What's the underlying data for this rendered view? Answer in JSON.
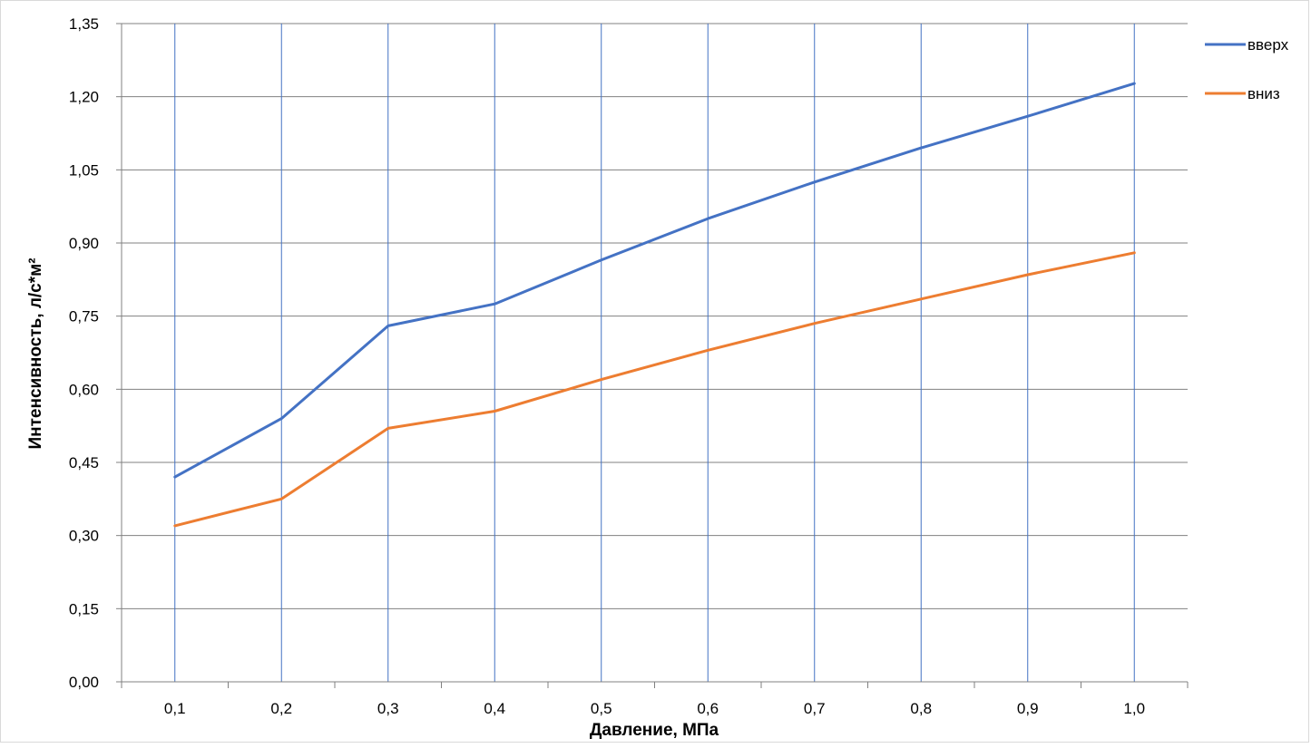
{
  "chart_data": {
    "type": "line",
    "x": [
      "0,1",
      "0,2",
      "0,3",
      "0,4",
      "0,5",
      "0,6",
      "0,7",
      "0,8",
      "0,9",
      "1,0"
    ],
    "x_values": [
      0.1,
      0.2,
      0.3,
      0.4,
      0.5,
      0.6,
      0.7,
      0.8,
      0.9,
      1.0
    ],
    "series": [
      {
        "name": "вверх",
        "color": "#4472C4",
        "values": [
          0.42,
          0.54,
          0.73,
          0.775,
          0.865,
          0.95,
          1.025,
          1.095,
          1.16,
          1.227
        ]
      },
      {
        "name": "вниз",
        "color": "#ED7D31",
        "values": [
          0.32,
          0.375,
          0.52,
          0.555,
          0.62,
          0.68,
          0.735,
          0.785,
          0.835,
          0.88
        ]
      }
    ],
    "xlabel": "Давление, МПа",
    "ylabel": "Интенсивность, л/с*м²",
    "ylim": [
      0,
      1.35
    ],
    "y_ticks": [
      "0,00",
      "0,15",
      "0,30",
      "0,45",
      "0,60",
      "0,75",
      "0,90",
      "1,05",
      "1,20",
      "1,35"
    ],
    "y_tick_values": [
      0,
      0.15,
      0.3,
      0.45,
      0.6,
      0.75,
      0.9,
      1.05,
      1.2,
      1.35
    ],
    "grid": {
      "horizontal": true,
      "vertical": true,
      "horizontal_color": "#808080",
      "vertical_color": "#4472C4"
    },
    "legend_position": "top-right"
  }
}
